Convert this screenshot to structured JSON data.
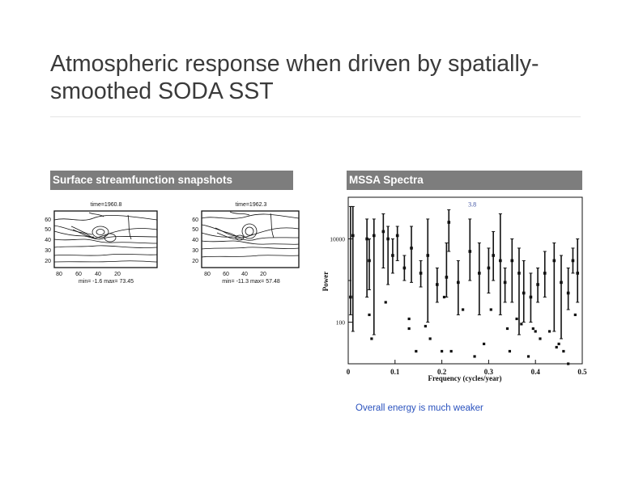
{
  "slide": {
    "title": "Atmospheric response when driven by spatially-smoothed SODA SST",
    "title_line1": "Atmospheric response when driven by spatially-",
    "title_line2": "smoothed SODA SST",
    "caption": "Overall energy is much weaker",
    "caption_color": "#2a52be",
    "bar_color": "#7d7d7d"
  },
  "left_panel": {
    "header": "Surface streamfunction snapshots",
    "maps": [
      {
        "time_label": "time=1960.8",
        "stats_label": "min= -1.6 max= 73.45",
        "y_ticks": [
          "60",
          "50",
          "40",
          "30",
          "20"
        ],
        "x_ticks": [
          "80",
          "60",
          "40",
          "20"
        ]
      },
      {
        "time_label": "time=1962.3",
        "stats_label": "min= -11.3 max= 57.48",
        "y_ticks": [
          "60",
          "50",
          "40",
          "30",
          "20"
        ],
        "x_ticks": [
          "80",
          "60",
          "40",
          "20"
        ]
      }
    ]
  },
  "right_panel": {
    "header": "MSSA Spectra",
    "annotation": "3.8"
  },
  "chart_data": {
    "type": "scatter",
    "title": "",
    "xlabel": "Frequency (cycles/year)",
    "ylabel": "Power",
    "xlim": [
      0,
      0.5
    ],
    "ylim": [
      10,
      100000
    ],
    "y_scale": "log",
    "x_ticks": [
      "0",
      "0.1",
      "0.2",
      "0.3",
      "0.4",
      "0.5"
    ],
    "y_ticks": [
      "10000",
      "100"
    ],
    "grid": false,
    "legend": "none",
    "annotation": {
      "text": "3.8",
      "x": 0.265,
      "y": 60000
    },
    "series": [
      {
        "points": [
          {
            "x": 0.005,
            "y": 400,
            "lo": 150,
            "hi": 60000
          },
          {
            "x": 0.01,
            "y": 12000,
            "lo": 60,
            "hi": 60000
          },
          {
            "x": 0.04,
            "y": 10000,
            "lo": 400,
            "hi": 30000
          },
          {
            "x": 0.045,
            "y": 3000,
            "lo": 600,
            "hi": 10000
          },
          {
            "x": 0.055,
            "y": 12000,
            "lo": 50,
            "hi": 30000
          },
          {
            "x": 0.075,
            "y": 15000,
            "lo": 2000,
            "hi": 40000
          },
          {
            "x": 0.085,
            "y": 10000,
            "lo": 800,
            "hi": 20000
          },
          {
            "x": 0.095,
            "y": 4000,
            "lo": 1500,
            "hi": 10000
          },
          {
            "x": 0.105,
            "y": 12000,
            "lo": 3000,
            "hi": 20000
          },
          {
            "x": 0.12,
            "y": 2000,
            "lo": 1000,
            "hi": 4000
          },
          {
            "x": 0.135,
            "y": 6000,
            "lo": 900,
            "hi": 20000
          },
          {
            "x": 0.155,
            "y": 1500,
            "lo": 700,
            "hi": 3000
          },
          {
            "x": 0.17,
            "y": 4000,
            "lo": 100,
            "hi": 30000
          },
          {
            "x": 0.19,
            "y": 800,
            "lo": 300,
            "hi": 2000
          },
          {
            "x": 0.21,
            "y": 1200,
            "lo": 400,
            "hi": 8000
          },
          {
            "x": 0.215,
            "y": 25000,
            "lo": 5000,
            "hi": 50000
          },
          {
            "x": 0.235,
            "y": 900,
            "lo": 150,
            "hi": 3000
          },
          {
            "x": 0.26,
            "y": 5000,
            "lo": 1000,
            "hi": 30000
          },
          {
            "x": 0.28,
            "y": 1500,
            "lo": 150,
            "hi": 8000
          },
          {
            "x": 0.3,
            "y": 2000,
            "lo": 500,
            "hi": 6000
          },
          {
            "x": 0.31,
            "y": 4000,
            "lo": 1000,
            "hi": 15000
          },
          {
            "x": 0.325,
            "y": 3000,
            "lo": 150,
            "hi": 40000
          },
          {
            "x": 0.335,
            "y": 900,
            "lo": 300,
            "hi": 2000
          },
          {
            "x": 0.35,
            "y": 3000,
            "lo": 300,
            "hi": 10000
          },
          {
            "x": 0.365,
            "y": 1500,
            "lo": 50,
            "hi": 6000
          },
          {
            "x": 0.375,
            "y": 500,
            "lo": 100,
            "hi": 3000
          },
          {
            "x": 0.39,
            "y": 400,
            "lo": 100,
            "hi": 1500
          },
          {
            "x": 0.405,
            "y": 800,
            "lo": 300,
            "hi": 2000
          },
          {
            "x": 0.42,
            "y": 1500,
            "lo": 400,
            "hi": 5000
          },
          {
            "x": 0.44,
            "y": 3000,
            "lo": 60,
            "hi": 8000
          },
          {
            "x": 0.455,
            "y": 900,
            "lo": 40,
            "hi": 4000
          },
          {
            "x": 0.47,
            "y": 500,
            "lo": 200,
            "hi": 2000
          },
          {
            "x": 0.48,
            "y": 3000,
            "lo": 1500,
            "hi": 6000
          },
          {
            "x": 0.49,
            "y": 1500,
            "lo": 300,
            "hi": 10000
          }
        ],
        "scatter_points": [
          {
            "x": 0.045,
            "y": 150
          },
          {
            "x": 0.05,
            "y": 40
          },
          {
            "x": 0.08,
            "y": 300
          },
          {
            "x": 0.13,
            "y": 120
          },
          {
            "x": 0.13,
            "y": 70
          },
          {
            "x": 0.145,
            "y": 20
          },
          {
            "x": 0.165,
            "y": 80
          },
          {
            "x": 0.175,
            "y": 40
          },
          {
            "x": 0.2,
            "y": 20
          },
          {
            "x": 0.205,
            "y": 400
          },
          {
            "x": 0.22,
            "y": 20
          },
          {
            "x": 0.245,
            "y": 200
          },
          {
            "x": 0.27,
            "y": 15
          },
          {
            "x": 0.29,
            "y": 30
          },
          {
            "x": 0.305,
            "y": 200
          },
          {
            "x": 0.34,
            "y": 70
          },
          {
            "x": 0.345,
            "y": 20
          },
          {
            "x": 0.36,
            "y": 120
          },
          {
            "x": 0.37,
            "y": 90
          },
          {
            "x": 0.385,
            "y": 15
          },
          {
            "x": 0.395,
            "y": 70
          },
          {
            "x": 0.4,
            "y": 60
          },
          {
            "x": 0.41,
            "y": 40
          },
          {
            "x": 0.43,
            "y": 60
          },
          {
            "x": 0.445,
            "y": 25
          },
          {
            "x": 0.45,
            "y": 30
          },
          {
            "x": 0.46,
            "y": 20
          },
          {
            "x": 0.47,
            "y": 10
          },
          {
            "x": 0.485,
            "y": 150
          }
        ]
      }
    ]
  }
}
